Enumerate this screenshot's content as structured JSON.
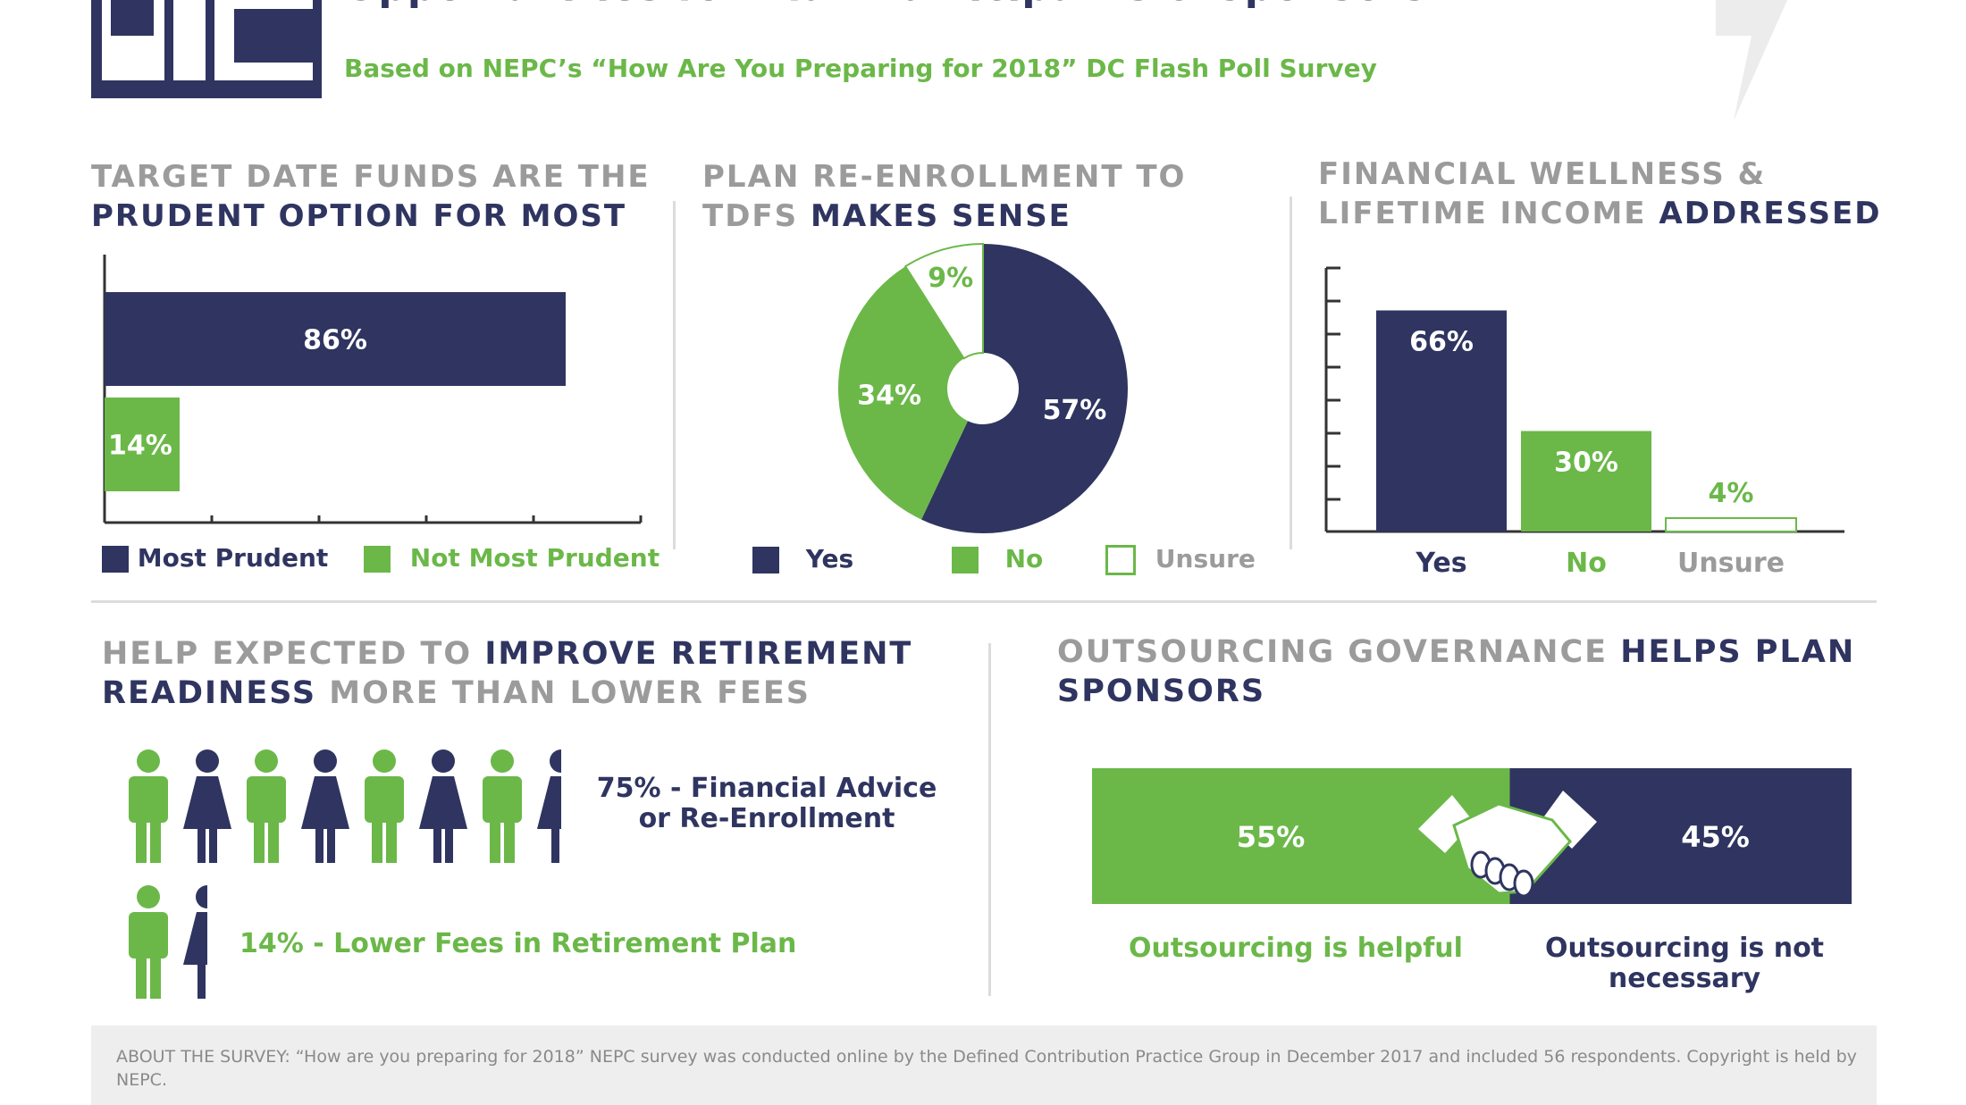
{
  "header": {
    "title": "Opportunities for Plan Participants & Sponsors",
    "subtitle": "Based on NEPC’s “How Are You Preparing for 2018” DC Flash Poll Survey"
  },
  "colors": {
    "navy": "#2f3560",
    "green": "#6bb849",
    "gray": "#9b9b9b"
  },
  "sections": {
    "tdf": {
      "heading_gray": "TARGET DATE FUNDS ARE THE",
      "heading_dark": "PRUDENT OPTION FOR MOST"
    },
    "reenroll": {
      "heading_gray_1": "PLAN RE-ENROLLMENT TO",
      "heading_gray_2": "TDFS",
      "heading_dark": "MAKES SENSE"
    },
    "wellness": {
      "heading_gray_1": "FINANCIAL WELLNESS &",
      "heading_gray_2": "LIFETIME INCOME",
      "heading_dark": "ADDRESSED"
    },
    "help": {
      "heading_gray_1": "HELP EXPECTED TO",
      "heading_dark_1": "IMPROVE RETIREMENT",
      "heading_dark_2": "READINESS",
      "heading_gray_2": "MORE THAN LOWER FEES"
    },
    "outsourcing": {
      "heading_gray": "OUTSOURCING GOVERNANCE",
      "heading_dark_1": "HELPS PLAN",
      "heading_dark_2": "SPONSORS"
    }
  },
  "chart_data": [
    {
      "type": "bar",
      "orientation": "horizontal",
      "categories": [
        "Most Prudent",
        "Not Most Prudent"
      ],
      "values": [
        86,
        14
      ],
      "value_labels": [
        "86%",
        "14%"
      ],
      "colors": [
        "#2f3560",
        "#6bb849"
      ],
      "xlim": [
        0,
        100
      ],
      "legend": [
        "Most Prudent",
        "Not Most Prudent"
      ]
    },
    {
      "type": "pie",
      "categories": [
        "Yes",
        "No",
        "Unsure"
      ],
      "values": [
        57,
        34,
        9
      ],
      "value_labels": [
        "57%",
        "34%",
        "9%"
      ],
      "colors": [
        "#2f3560",
        "#6bb849",
        "#ffffff"
      ],
      "legend": [
        "Yes",
        "No",
        "Unsure"
      ]
    },
    {
      "type": "bar",
      "categories": [
        "Yes",
        "No",
        "Unsure"
      ],
      "values": [
        66,
        30,
        4
      ],
      "value_labels": [
        "66%",
        "30%",
        "4%"
      ],
      "colors": [
        "#2f3560",
        "#6bb849",
        "#ffffff"
      ],
      "ylim": [
        0,
        80
      ]
    },
    {
      "type": "bar",
      "orientation": "horizontal-stacked",
      "categories": [
        "Outsourcing is helpful",
        "Outsourcing is not necessary"
      ],
      "values": [
        55,
        45
      ],
      "value_labels": [
        "55%",
        "45%"
      ],
      "colors": [
        "#6bb849",
        "#2f3560"
      ]
    }
  ],
  "people": {
    "row1_label": "75% - Financial Advice or Re-Enrollment",
    "row2_label": "14% - Lower Fees in Retirement Plan",
    "row1_value": 75,
    "row2_value": 14
  },
  "footer": {
    "text": "ABOUT THE SURVEY: “How are you preparing for 2018” NEPC survey was conducted online by the Defined Contribution Practice Group in December 2017 and included 56 respondents. Copyright is held by NEPC."
  }
}
